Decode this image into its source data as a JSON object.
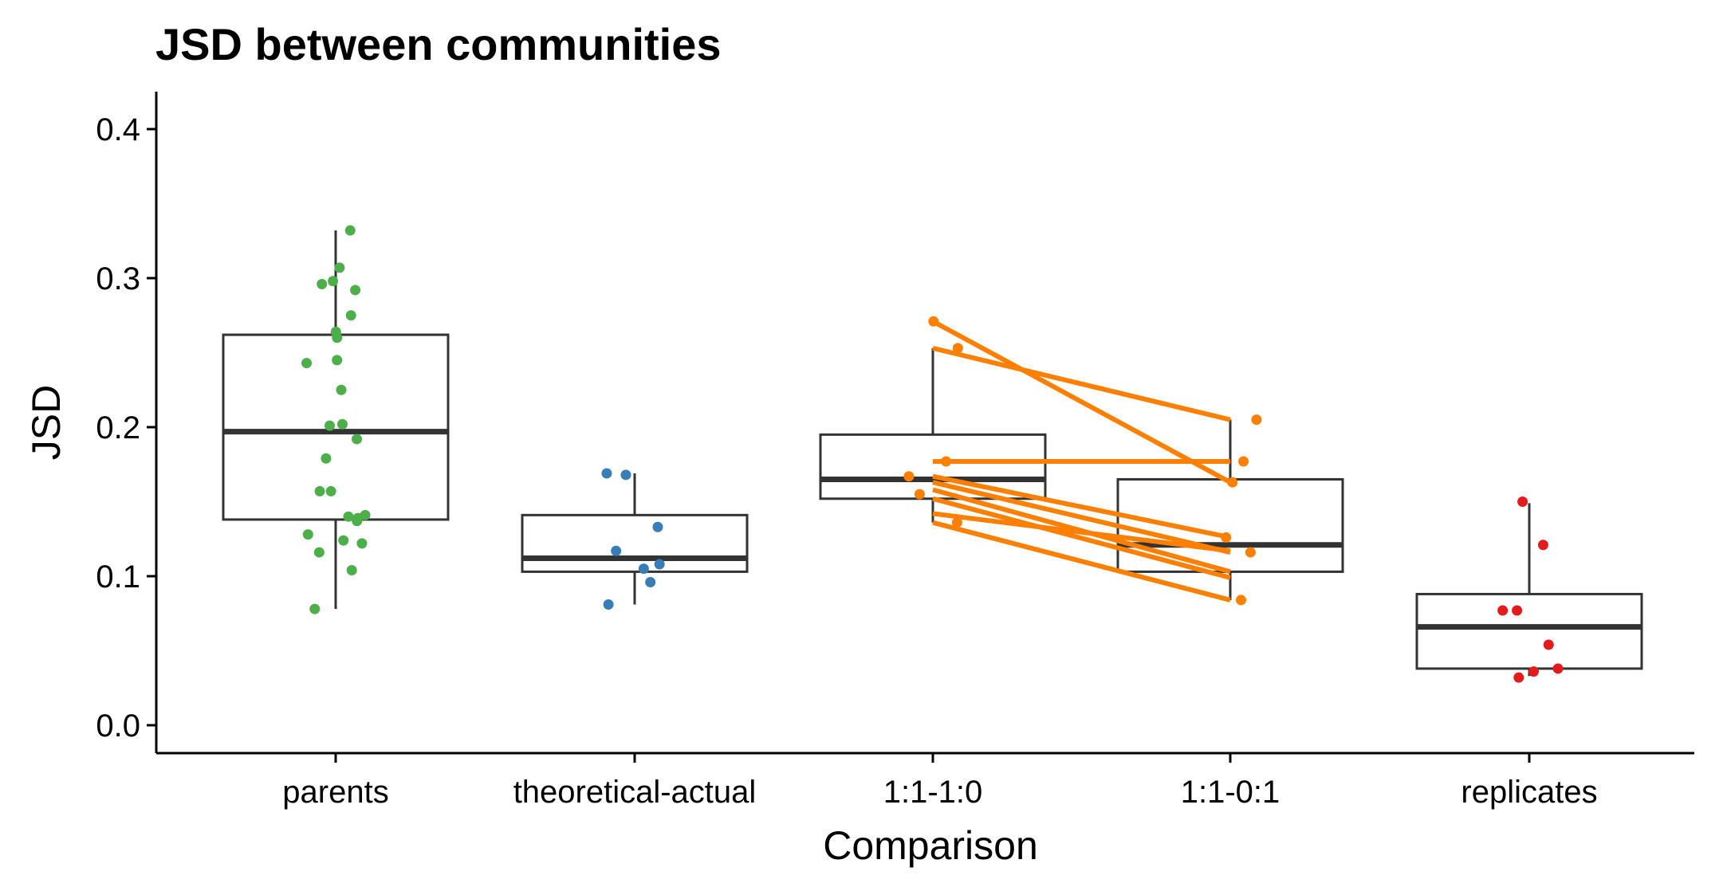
{
  "chart_data": {
    "type": "box",
    "title": "JSD between communities",
    "xlabel": "Comparison",
    "ylabel": "JSD",
    "ylim": [
      -0.02,
      0.42
    ],
    "yticks": [
      "0.0",
      "0.1",
      "0.2",
      "0.3",
      "0.4"
    ],
    "ytick_values": [
      0.0,
      0.1,
      0.2,
      0.3,
      0.4
    ],
    "grid": false,
    "legend": "none",
    "categories": [
      "parents",
      "theoretical-actual",
      "1:1-1:0",
      "1:1-0:1",
      "replicates"
    ],
    "colors": {
      "parents": "#4daf4a",
      "theoretical-actual": "#377eb8",
      "1:1-1:0": "#ff7f00",
      "1:1-0:1": "#ff7f00",
      "replicates": "#e41a1c",
      "box": "#333333"
    },
    "boxes": [
      {
        "category": "parents",
        "whisker_low": 0.078,
        "q1": 0.138,
        "median": 0.197,
        "q3": 0.262,
        "whisker_high": 0.332
      },
      {
        "category": "theoretical-actual",
        "whisker_low": 0.081,
        "q1": 0.103,
        "median": 0.112,
        "q3": 0.141,
        "whisker_high": 0.169
      },
      {
        "category": "1:1-1:0",
        "whisker_low": 0.136,
        "q1": 0.152,
        "median": 0.165,
        "q3": 0.195,
        "whisker_high": 0.253
      },
      {
        "category": "1:1-0:1",
        "whisker_low": 0.084,
        "q1": 0.103,
        "median": 0.121,
        "q3": 0.165,
        "whisker_high": 0.205
      },
      {
        "category": "replicates",
        "whisker_low": 0.033,
        "q1": 0.038,
        "median": 0.066,
        "q3": 0.088,
        "whisker_high": 0.149
      }
    ],
    "points": {
      "parents": [
        0.332,
        0.307,
        0.298,
        0.296,
        0.292,
        0.275,
        0.264,
        0.26,
        0.245,
        0.243,
        0.225,
        0.202,
        0.201,
        0.192,
        0.179,
        0.157,
        0.157,
        0.141,
        0.14,
        0.139,
        0.137,
        0.128,
        0.124,
        0.122,
        0.116,
        0.104,
        0.078
      ],
      "theoretical-actual": [
        0.169,
        0.168,
        0.133,
        0.117,
        0.108,
        0.105,
        0.096,
        0.081
      ],
      "1:1-1:0": [
        0.271,
        0.253,
        0.177,
        0.167,
        0.155,
        0.136
      ],
      "1:1-0:1": [
        0.205,
        0.177,
        0.163,
        0.126,
        0.116,
        0.084
      ],
      "replicates": [
        0.15,
        0.121,
        0.077,
        0.077,
        0.054,
        0.038,
        0.036,
        0.032
      ]
    },
    "paired_lines": [
      {
        "from": 0.271,
        "to": 0.163
      },
      {
        "from": 0.253,
        "to": 0.205
      },
      {
        "from": 0.177,
        "to": 0.177
      },
      {
        "from": 0.167,
        "to": 0.126
      },
      {
        "from": 0.163,
        "to": 0.116
      },
      {
        "from": 0.158,
        "to": 0.103
      },
      {
        "from": 0.152,
        "to": 0.099
      },
      {
        "from": 0.142,
        "to": 0.117
      },
      {
        "from": 0.136,
        "to": 0.084
      }
    ]
  }
}
